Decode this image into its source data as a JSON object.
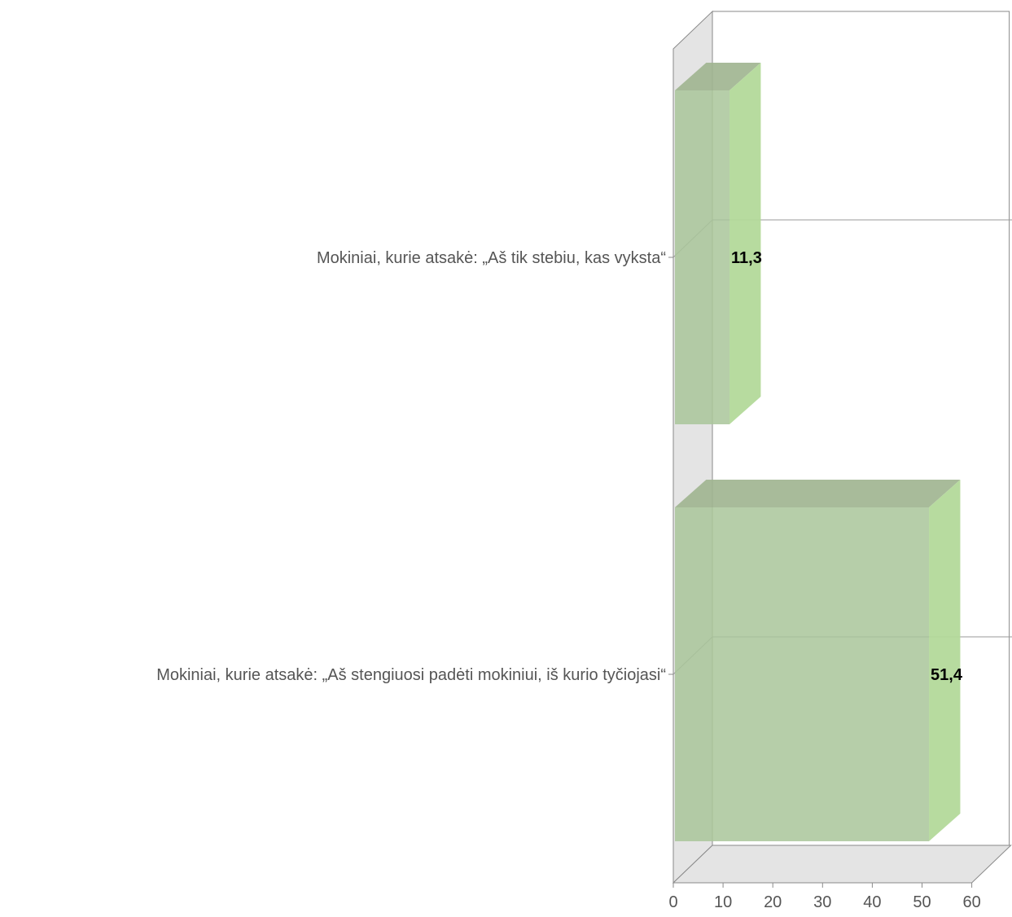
{
  "chart_data": {
    "type": "bar",
    "orientation": "horizontal",
    "three_d": true,
    "categories": [
      "Mokiniai, kurie atsakė: „Aš tik stebiu, kas vyksta“",
      "Mokiniai, kurie atsakė: „Aš stengiuosi padėti mokiniui, iš kurio tyčiojasi“"
    ],
    "values": [
      11.3,
      51.4
    ],
    "value_labels": [
      "11,3",
      "51,4"
    ],
    "xlim": [
      0,
      60
    ],
    "x_ticks": [
      "0",
      "10",
      "20",
      "30",
      "40",
      "50",
      "60"
    ],
    "grid": true,
    "colors": {
      "bar_front": "#a9c59a",
      "bar_side": "#b3d99a",
      "bar_top": "#9fb48f",
      "wall": "#e4e4e4"
    }
  }
}
